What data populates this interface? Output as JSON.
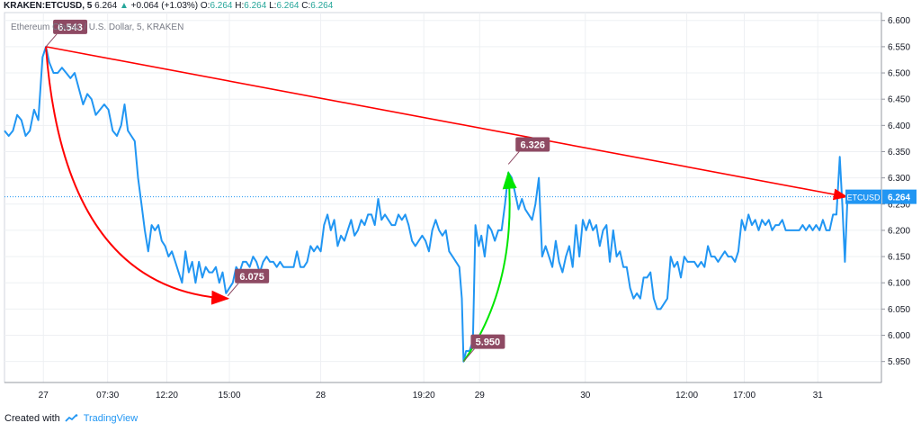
{
  "header": {
    "symbol": "KRAKEN:ETCUSD, 5",
    "last": "6.264",
    "arrow": "▲",
    "change": "+0.064 (+1.03%)",
    "o_label": "O:",
    "o": "6.264",
    "h_label": "H:",
    "h": "6.264",
    "l_label": "L:",
    "l": "6.264",
    "c_label": "C:",
    "c": "6.264"
  },
  "subtitle": "Ethereum Classic / U.S. Dollar, 5, KRAKEN",
  "footer": {
    "created": "Created with",
    "brand": "TradingView"
  },
  "colors": {
    "line": "#2196f3",
    "trend": "#ff0000",
    "green_arrow": "#00e600",
    "label_bg": "#8e4a63",
    "price_tag": "#2196f3",
    "grid": "#eef0f3"
  },
  "chart_data": {
    "type": "line",
    "title": "KRAKEN:ETCUSD, 5",
    "ylim": [
      5.91,
      6.615
    ],
    "xlim": [
      0,
      100
    ],
    "x_ticks": [
      {
        "x": 4.6,
        "label": "27"
      },
      {
        "x": 12.2,
        "label": "07:30"
      },
      {
        "x": 19.2,
        "label": "12:20"
      },
      {
        "x": 26.6,
        "label": "15:00"
      },
      {
        "x": 37.4,
        "label": "28"
      },
      {
        "x": 49.6,
        "label": "19:20"
      },
      {
        "x": 56.2,
        "label": "29"
      },
      {
        "x": 68.7,
        "label": "30"
      },
      {
        "x": 80.7,
        "label": "12:00"
      },
      {
        "x": 87.5,
        "label": "17:00"
      },
      {
        "x": 96.2,
        "label": "31"
      }
    ],
    "y_ticks": [
      "6.600",
      "6.550",
      "6.500",
      "6.450",
      "6.400",
      "6.350",
      "6.300",
      "6.250",
      "6.200",
      "6.150",
      "6.100",
      "6.050",
      "6.000",
      "5.950"
    ],
    "series": [
      {
        "values": [
          [
            0,
            6.39
          ],
          [
            0.5,
            6.38
          ],
          [
            1,
            6.39
          ],
          [
            1.5,
            6.42
          ],
          [
            2,
            6.41
          ],
          [
            2.5,
            6.38
          ],
          [
            3,
            6.39
          ],
          [
            3.5,
            6.43
          ],
          [
            4,
            6.41
          ],
          [
            4.5,
            6.53
          ],
          [
            4.9,
            6.55
          ],
          [
            5.3,
            6.52
          ],
          [
            5.8,
            6.5
          ],
          [
            6.3,
            6.5
          ],
          [
            6.8,
            6.51
          ],
          [
            7.3,
            6.5
          ],
          [
            7.8,
            6.49
          ],
          [
            8.3,
            6.5
          ],
          [
            8.8,
            6.47
          ],
          [
            9.3,
            6.44
          ],
          [
            9.8,
            6.46
          ],
          [
            10.3,
            6.45
          ],
          [
            10.8,
            6.42
          ],
          [
            11.3,
            6.43
          ],
          [
            11.8,
            6.44
          ],
          [
            12.3,
            6.43
          ],
          [
            12.8,
            6.39
          ],
          [
            13.3,
            6.38
          ],
          [
            13.8,
            6.4
          ],
          [
            14.2,
            6.44
          ],
          [
            14.6,
            6.39
          ],
          [
            15,
            6.38
          ],
          [
            15.4,
            6.37
          ],
          [
            15.8,
            6.3
          ],
          [
            16.2,
            6.25
          ],
          [
            16.6,
            6.2
          ],
          [
            17,
            6.16
          ],
          [
            17.4,
            6.21
          ],
          [
            17.8,
            6.2
          ],
          [
            18.2,
            6.21
          ],
          [
            18.6,
            6.18
          ],
          [
            19,
            6.17
          ],
          [
            19.4,
            6.15
          ],
          [
            19.8,
            6.16
          ],
          [
            20.2,
            6.14
          ],
          [
            20.6,
            6.12
          ],
          [
            21,
            6.1
          ],
          [
            21.4,
            6.16
          ],
          [
            21.8,
            6.12
          ],
          [
            22.2,
            6.14
          ],
          [
            22.6,
            6.1
          ],
          [
            23,
            6.14
          ],
          [
            23.4,
            6.11
          ],
          [
            23.8,
            6.13
          ],
          [
            24.2,
            6.12
          ],
          [
            24.6,
            6.12
          ],
          [
            25,
            6.13
          ],
          [
            25.4,
            6.1
          ],
          [
            25.8,
            6.12
          ],
          [
            26.2,
            6.08
          ],
          [
            26.6,
            6.09
          ],
          [
            27,
            6.1
          ],
          [
            27.4,
            6.13
          ],
          [
            27.8,
            6.12
          ],
          [
            28.2,
            6.14
          ],
          [
            28.6,
            6.14
          ],
          [
            29,
            6.13
          ],
          [
            29.4,
            6.15
          ],
          [
            29.8,
            6.14
          ],
          [
            30.2,
            6.12
          ],
          [
            30.6,
            6.14
          ],
          [
            31,
            6.15
          ],
          [
            31.4,
            6.14
          ],
          [
            31.8,
            6.14
          ],
          [
            32.2,
            6.13
          ],
          [
            32.6,
            6.14
          ],
          [
            33,
            6.13
          ],
          [
            33.4,
            6.13
          ],
          [
            33.8,
            6.13
          ],
          [
            34.2,
            6.13
          ],
          [
            34.6,
            6.16
          ],
          [
            35,
            6.13
          ],
          [
            35.4,
            6.13
          ],
          [
            35.8,
            6.14
          ],
          [
            36.2,
            6.17
          ],
          [
            36.6,
            6.16
          ],
          [
            37,
            6.17
          ],
          [
            37.4,
            6.16
          ],
          [
            37.8,
            6.21
          ],
          [
            38.2,
            6.23
          ],
          [
            38.6,
            6.2
          ],
          [
            39,
            6.22
          ],
          [
            39.4,
            6.17
          ],
          [
            39.8,
            6.19
          ],
          [
            40.2,
            6.18
          ],
          [
            40.6,
            6.2
          ],
          [
            41,
            6.22
          ],
          [
            41.4,
            6.19
          ],
          [
            41.8,
            6.2
          ],
          [
            42.2,
            6.22
          ],
          [
            42.6,
            6.21
          ],
          [
            43,
            6.23
          ],
          [
            43.4,
            6.23
          ],
          [
            43.8,
            6.21
          ],
          [
            44.2,
            6.26
          ],
          [
            44.6,
            6.22
          ],
          [
            45,
            6.23
          ],
          [
            45.4,
            6.22
          ],
          [
            45.8,
            6.21
          ],
          [
            46.2,
            6.21
          ],
          [
            46.6,
            6.23
          ],
          [
            47,
            6.22
          ],
          [
            47.4,
            6.23
          ],
          [
            47.8,
            6.21
          ],
          [
            48.2,
            6.18
          ],
          [
            48.6,
            6.17
          ],
          [
            49,
            6.18
          ],
          [
            49.4,
            6.19
          ],
          [
            49.8,
            6.18
          ],
          [
            50.2,
            6.16
          ],
          [
            50.6,
            6.2
          ],
          [
            51,
            6.22
          ],
          [
            51.4,
            6.2
          ],
          [
            51.8,
            6.19
          ],
          [
            52.2,
            6.2
          ],
          [
            52.6,
            6.16
          ],
          [
            53,
            6.15
          ],
          [
            53.4,
            6.14
          ],
          [
            53.8,
            6.13
          ],
          [
            54.1,
            6.07
          ],
          [
            54.3,
            5.95
          ],
          [
            54.6,
            5.97
          ],
          [
            55,
            5.97
          ],
          [
            55.4,
            5.99
          ],
          [
            55.7,
            6.21
          ],
          [
            56.1,
            6.17
          ],
          [
            56.4,
            6.19
          ],
          [
            56.8,
            6.15
          ],
          [
            57.2,
            6.21
          ],
          [
            57.6,
            6.2
          ],
          [
            58,
            6.18
          ],
          [
            58.4,
            6.2
          ],
          [
            58.8,
            6.2
          ],
          [
            59.2,
            6.25
          ],
          [
            59.6,
            6.31
          ],
          [
            60,
            6.3
          ],
          [
            60.4,
            6.27
          ],
          [
            60.8,
            6.24
          ],
          [
            61.2,
            6.26
          ],
          [
            61.6,
            6.24
          ],
          [
            62,
            6.23
          ],
          [
            62.4,
            6.22
          ],
          [
            62.8,
            6.25
          ],
          [
            63.2,
            6.3
          ],
          [
            63.6,
            6.15
          ],
          [
            64,
            6.17
          ],
          [
            64.4,
            6.15
          ],
          [
            64.8,
            6.13
          ],
          [
            65.2,
            6.18
          ],
          [
            65.6,
            6.14
          ],
          [
            66,
            6.12
          ],
          [
            66.4,
            6.15
          ],
          [
            66.8,
            6.17
          ],
          [
            67.2,
            6.13
          ],
          [
            67.6,
            6.21
          ],
          [
            68,
            6.15
          ],
          [
            68.4,
            6.22
          ],
          [
            68.8,
            6.2
          ],
          [
            69.2,
            6.22
          ],
          [
            69.6,
            6.2
          ],
          [
            70,
            6.21
          ],
          [
            70.4,
            6.17
          ],
          [
            70.8,
            6.2
          ],
          [
            71.2,
            6.21
          ],
          [
            71.6,
            6.14
          ],
          [
            72,
            6.2
          ],
          [
            72.4,
            6.15
          ],
          [
            72.8,
            6.16
          ],
          [
            73.2,
            6.13
          ],
          [
            73.6,
            6.13
          ],
          [
            74,
            6.09
          ],
          [
            74.4,
            6.07
          ],
          [
            74.8,
            6.08
          ],
          [
            75.2,
            6.07
          ],
          [
            75.6,
            6.11
          ],
          [
            76,
            6.11
          ],
          [
            76.4,
            6.12
          ],
          [
            76.8,
            6.07
          ],
          [
            77.2,
            6.05
          ],
          [
            77.6,
            6.05
          ],
          [
            78,
            6.06
          ],
          [
            78.4,
            6.07
          ],
          [
            78.8,
            6.15
          ],
          [
            79.2,
            6.13
          ],
          [
            79.6,
            6.14
          ],
          [
            80,
            6.11
          ],
          [
            80.4,
            6.15
          ],
          [
            80.8,
            6.14
          ],
          [
            81.2,
            6.14
          ],
          [
            81.6,
            6.14
          ],
          [
            82,
            6.13
          ],
          [
            82.4,
            6.14
          ],
          [
            82.8,
            6.13
          ],
          [
            83.2,
            6.17
          ],
          [
            83.6,
            6.15
          ],
          [
            84,
            6.15
          ],
          [
            84.4,
            6.14
          ],
          [
            84.8,
            6.15
          ],
          [
            85.2,
            6.16
          ],
          [
            85.6,
            6.15
          ],
          [
            86,
            6.15
          ],
          [
            86.4,
            6.14
          ],
          [
            86.8,
            6.16
          ],
          [
            87.2,
            6.22
          ],
          [
            87.6,
            6.2
          ],
          [
            88,
            6.23
          ],
          [
            88.4,
            6.21
          ],
          [
            88.8,
            6.22
          ],
          [
            89.2,
            6.2
          ],
          [
            89.6,
            6.22
          ],
          [
            90,
            6.21
          ],
          [
            90.4,
            6.22
          ],
          [
            90.8,
            6.2
          ],
          [
            91.2,
            6.21
          ],
          [
            91.6,
            6.21
          ],
          [
            92,
            6.22
          ],
          [
            92.4,
            6.2
          ],
          [
            92.8,
            6.2
          ],
          [
            93.2,
            6.2
          ],
          [
            93.6,
            6.2
          ],
          [
            94,
            6.2
          ],
          [
            94.4,
            6.21
          ],
          [
            94.8,
            6.2
          ],
          [
            95.2,
            6.21
          ],
          [
            95.6,
            6.2
          ],
          [
            96,
            6.21
          ],
          [
            96.4,
            6.2
          ],
          [
            96.8,
            6.22
          ],
          [
            97.2,
            6.2
          ],
          [
            97.6,
            6.2
          ],
          [
            98,
            6.23
          ],
          [
            98.4,
            6.23
          ],
          [
            98.8,
            6.34
          ],
          [
            99.1,
            6.25
          ],
          [
            99.4,
            6.14
          ],
          [
            99.7,
            6.26
          ],
          [
            100,
            6.264
          ]
        ]
      }
    ],
    "last_price": {
      "value": 6.264,
      "symbol_label": "ETCUSD",
      "price_label": "6.264"
    },
    "annotations": [
      {
        "x": 4.9,
        "y": 6.55,
        "label": "6.543",
        "anchor": "right"
      },
      {
        "x": 26.4,
        "y": 6.075,
        "label": "6.075",
        "anchor": "right"
      },
      {
        "x": 54.3,
        "y": 5.95,
        "label": "5.950",
        "anchor": "right"
      },
      {
        "x": 59.6,
        "y": 6.326,
        "label": "6.326",
        "anchor": "right"
      }
    ],
    "trend_lines": [
      {
        "from": [
          4.9,
          6.55
        ],
        "to": [
          99.6,
          6.264
        ],
        "color": "red"
      }
    ],
    "curved_arrows": [
      {
        "from": [
          4.9,
          6.55
        ],
        "to": [
          26.4,
          6.07
        ],
        "color": "red"
      },
      {
        "from": [
          54.3,
          5.95
        ],
        "to": [
          59.6,
          6.31
        ],
        "color": "green"
      }
    ]
  }
}
